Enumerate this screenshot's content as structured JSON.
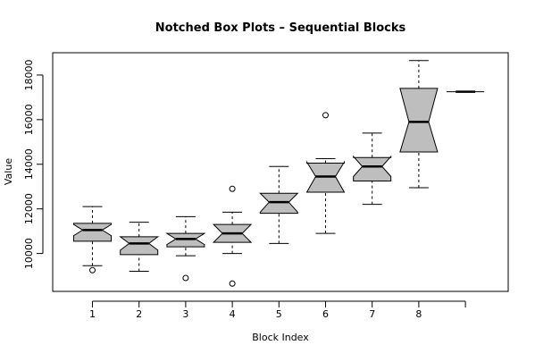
{
  "chart_data": {
    "type": "boxplot",
    "notched": true,
    "title": "Notched Box Plots – Sequential Blocks",
    "xlabel": "Block Index",
    "ylabel": "Value",
    "ylim": [
      8300,
      19000
    ],
    "y_ticks": [
      10000,
      12000,
      14000,
      16000,
      18000
    ],
    "categories": [
      "1",
      "2",
      "3",
      "4",
      "5",
      "6",
      "7",
      "8",
      ""
    ],
    "box_fill": "#bebebe",
    "boxes": [
      {
        "category": "1",
        "whisker_low": 9450,
        "q1": 10550,
        "median": 11050,
        "q3": 11350,
        "whisker_high": 12100,
        "notch_low": 10800,
        "notch_high": 11300,
        "outliers": [
          9250
        ]
      },
      {
        "category": "2",
        "whisker_low": 9200,
        "q1": 9950,
        "median": 10450,
        "q3": 10750,
        "whisker_high": 11400,
        "notch_low": 10150,
        "notch_high": 10750,
        "outliers": []
      },
      {
        "category": "3",
        "whisker_low": 9900,
        "q1": 10300,
        "median": 10650,
        "q3": 10900,
        "whisker_high": 11650,
        "notch_low": 10400,
        "notch_high": 10900,
        "outliers": [
          8900
        ]
      },
      {
        "category": "4",
        "whisker_low": 10000,
        "q1": 10500,
        "median": 10900,
        "q3": 11300,
        "whisker_high": 11850,
        "notch_low": 10500,
        "notch_high": 11300,
        "outliers": [
          12900,
          8650
        ]
      },
      {
        "category": "5",
        "whisker_low": 10450,
        "q1": 11800,
        "median": 12300,
        "q3": 12700,
        "whisker_high": 13900,
        "notch_low": 11850,
        "notch_high": 12700,
        "outliers": []
      },
      {
        "category": "6",
        "whisker_low": 10900,
        "q1": 12750,
        "median": 13450,
        "q3": 14050,
        "whisker_high": 14250,
        "notch_low": 12750,
        "notch_high": 14100,
        "outliers": [
          16200
        ]
      },
      {
        "category": "7",
        "whisker_low": 12200,
        "q1": 13250,
        "median": 13900,
        "q3": 14300,
        "whisker_high": 15400,
        "notch_low": 13450,
        "notch_high": 14350,
        "outliers": []
      },
      {
        "category": "8",
        "whisker_low": 12950,
        "q1": 14550,
        "median": 15900,
        "q3": 17400,
        "whisker_high": 18650,
        "notch_low": 14550,
        "notch_high": 17400,
        "outliers": []
      },
      {
        "category": "",
        "whisker_low": 17250,
        "q1": 17250,
        "median": 17250,
        "q3": 17250,
        "whisker_high": 17250,
        "notch_low": 17250,
        "notch_high": 17250,
        "outliers": []
      }
    ]
  }
}
